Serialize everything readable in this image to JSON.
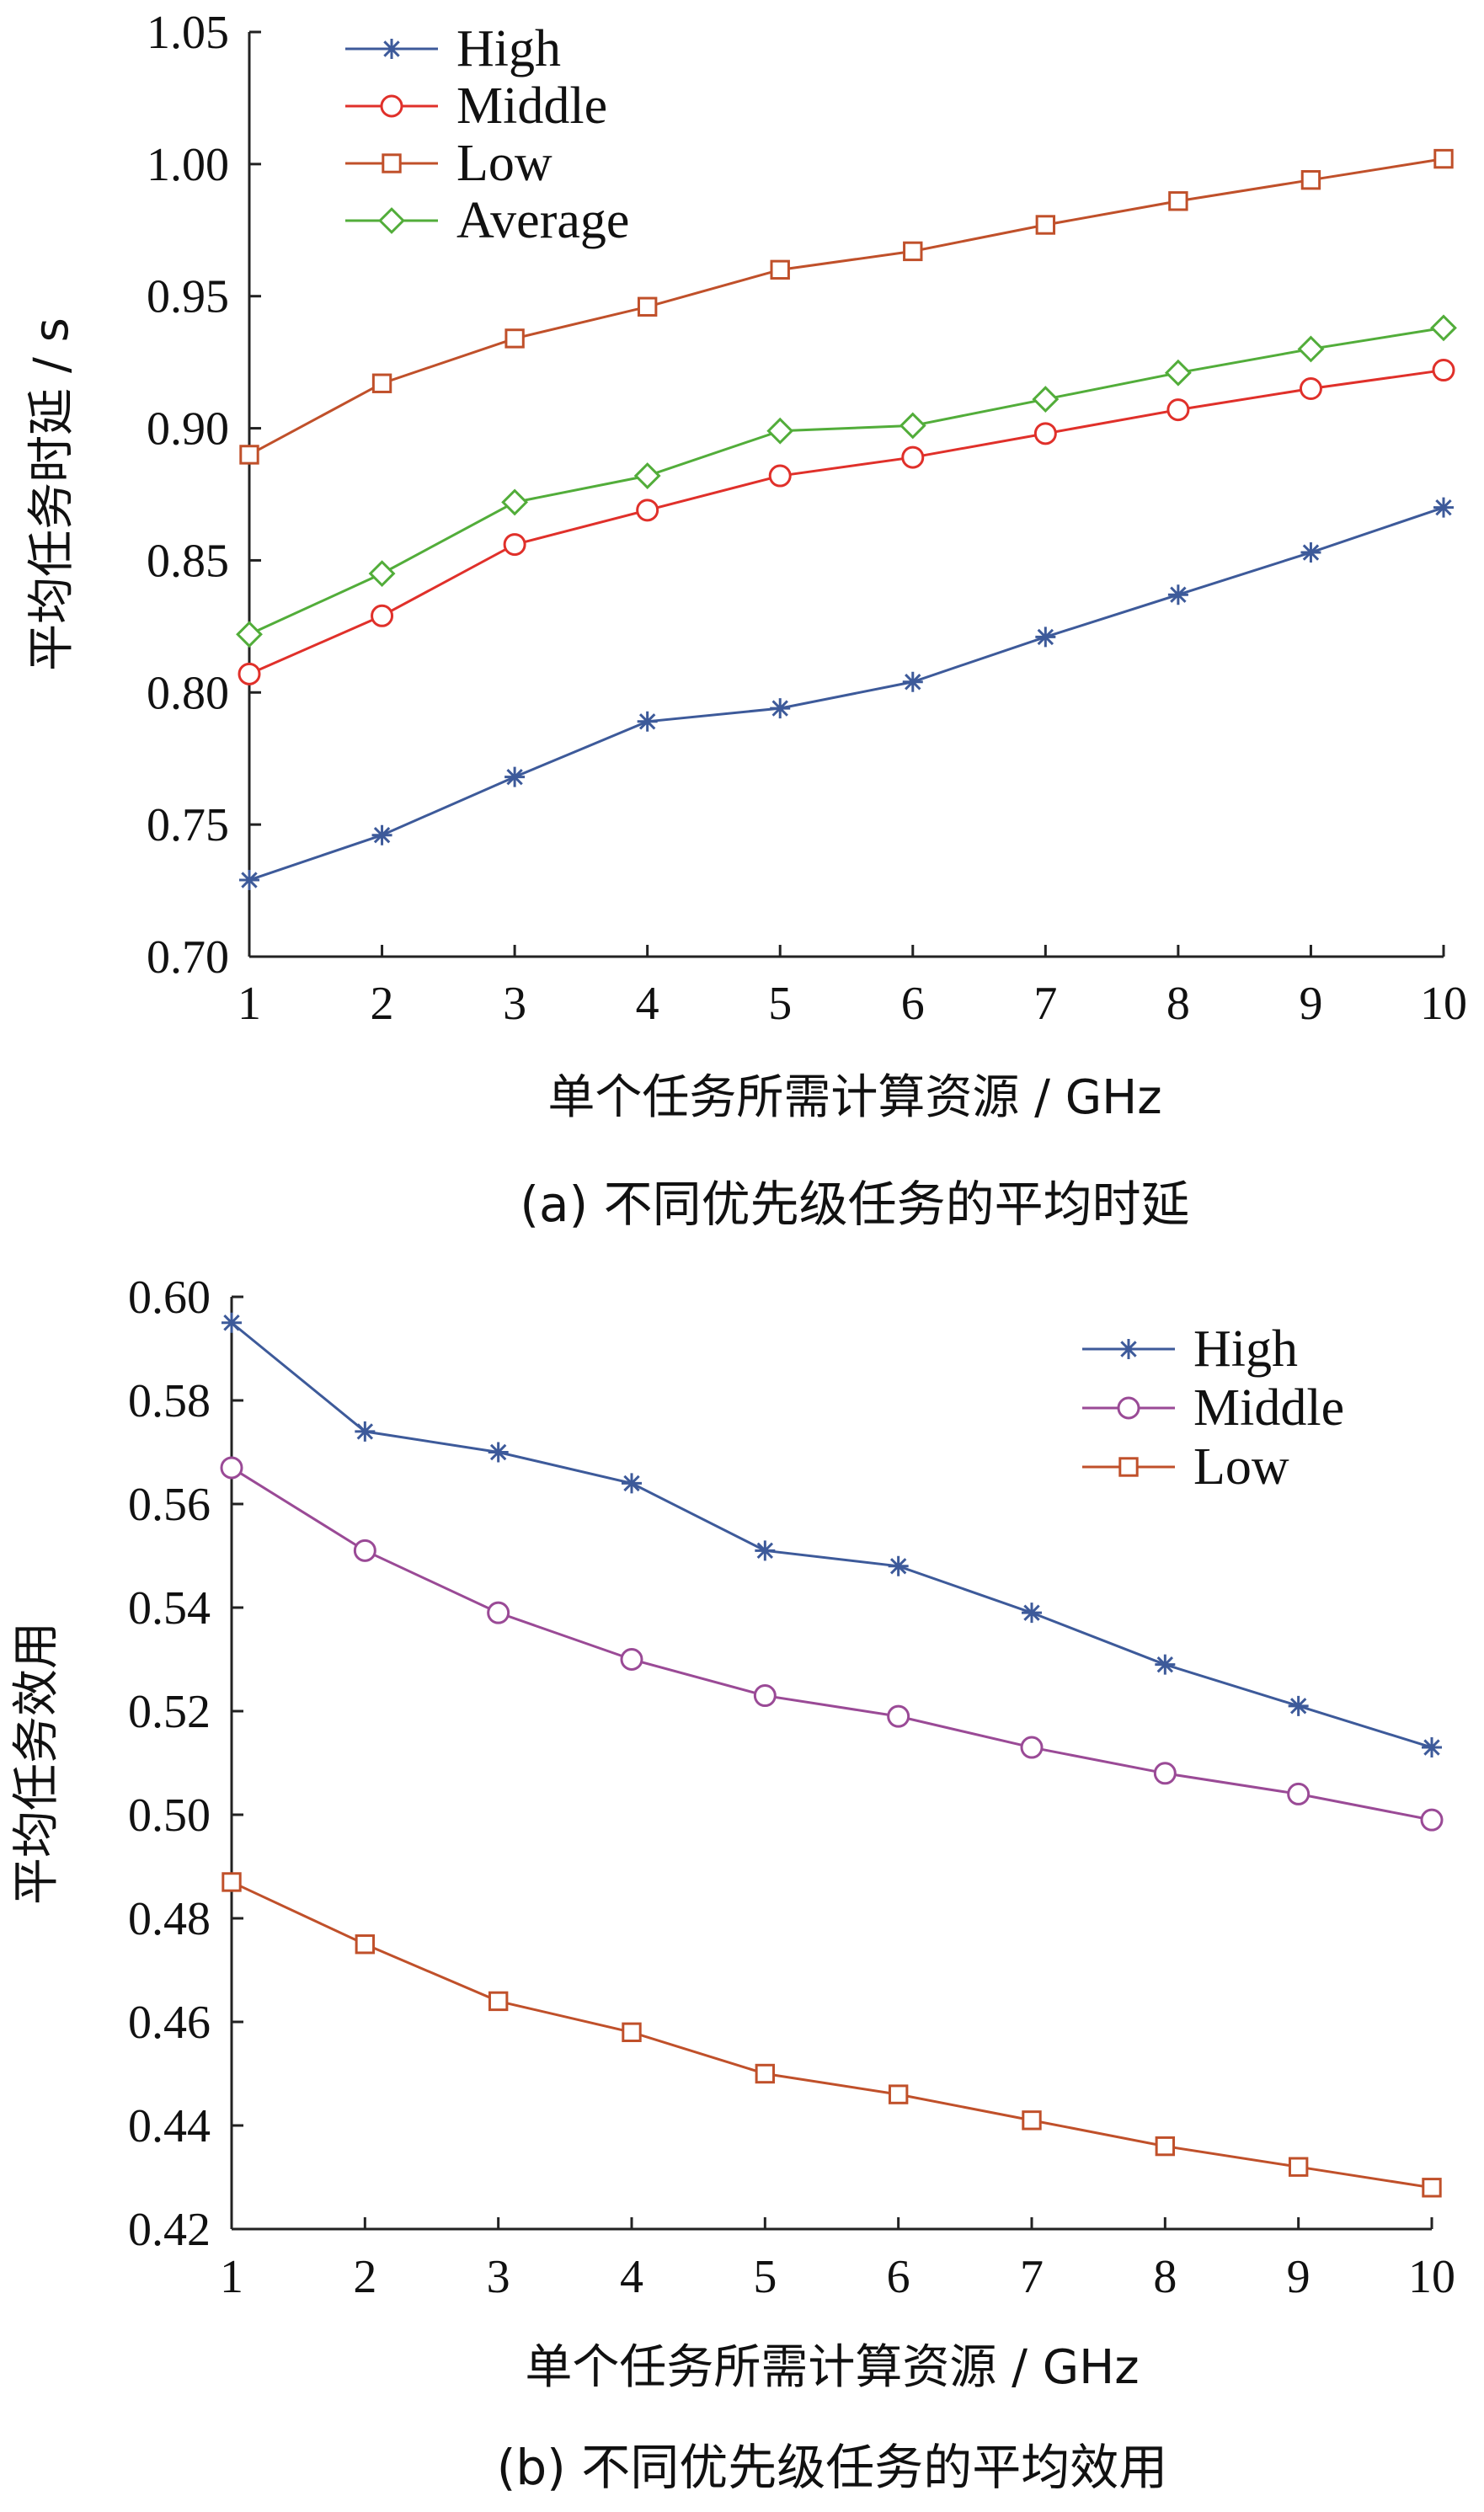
{
  "chart_data": [
    {
      "type": "line",
      "caption": "(a)  不同优先级任务的平均时延",
      "xlabel": "单个任务所需计算资源 / GHz",
      "ylabel": "平均任务时延 / s",
      "x": [
        1,
        2,
        3,
        4,
        5,
        6,
        7,
        8,
        9,
        10
      ],
      "xlim": [
        1,
        10
      ],
      "ylim": [
        0.7,
        1.05
      ],
      "xticks": [
        "1",
        "2",
        "3",
        "4",
        "5",
        "6",
        "7",
        "8",
        "9",
        "10"
      ],
      "yticks": [
        "0.70",
        "0.75",
        "0.80",
        "0.85",
        "0.90",
        "0.95",
        "1.00",
        "1.05"
      ],
      "grid": false,
      "legend": "top-left",
      "series": [
        {
          "name": "High",
          "marker": "star",
          "color": "#3d5a9a",
          "values": [
            0.729,
            0.746,
            0.768,
            0.789,
            0.794,
            0.804,
            0.821,
            0.837,
            0.853,
            0.87
          ]
        },
        {
          "name": "Middle",
          "marker": "circle",
          "color": "#e0302a",
          "values": [
            0.807,
            0.829,
            0.856,
            0.869,
            0.882,
            0.889,
            0.898,
            0.907,
            0.915,
            0.922
          ]
        },
        {
          "name": "Low",
          "marker": "square",
          "color": "#c0502a",
          "values": [
            0.89,
            0.917,
            0.934,
            0.946,
            0.96,
            0.967,
            0.977,
            0.986,
            0.994,
            1.002
          ]
        },
        {
          "name": "Average",
          "marker": "diamond",
          "color": "#52ad3a",
          "values": [
            0.822,
            0.845,
            0.872,
            0.882,
            0.899,
            0.901,
            0.911,
            0.921,
            0.93,
            0.938
          ]
        }
      ]
    },
    {
      "type": "line",
      "caption": "(b)  不同优先级任务的平均效用",
      "xlabel": "单个任务所需计算资源 / GHz",
      "ylabel": "平均任务效用",
      "x": [
        1,
        2,
        3,
        4,
        5,
        6,
        7,
        8,
        9,
        10
      ],
      "xlim": [
        1,
        10
      ],
      "ylim": [
        0.42,
        0.6
      ],
      "xticks": [
        "1",
        "2",
        "3",
        "4",
        "5",
        "6",
        "7",
        "8",
        "9",
        "10"
      ],
      "yticks": [
        "0.42",
        "0.44",
        "0.46",
        "0.48",
        "0.50",
        "0.52",
        "0.54",
        "0.56",
        "0.58",
        "0.60"
      ],
      "grid": false,
      "legend": "top-right",
      "series": [
        {
          "name": "High",
          "marker": "star",
          "color": "#3d5a9a",
          "values": [
            0.595,
            0.574,
            0.57,
            0.564,
            0.551,
            0.548,
            0.539,
            0.529,
            0.521,
            0.513
          ]
        },
        {
          "name": "Middle",
          "marker": "circle",
          "color": "#9a4a96",
          "values": [
            0.567,
            0.551,
            0.539,
            0.53,
            0.523,
            0.519,
            0.513,
            0.508,
            0.504,
            0.499
          ]
        },
        {
          "name": "Low",
          "marker": "square",
          "color": "#c0502a",
          "values": [
            0.487,
            0.475,
            0.464,
            0.458,
            0.45,
            0.446,
            0.441,
            0.436,
            0.432,
            0.428
          ]
        }
      ]
    }
  ]
}
